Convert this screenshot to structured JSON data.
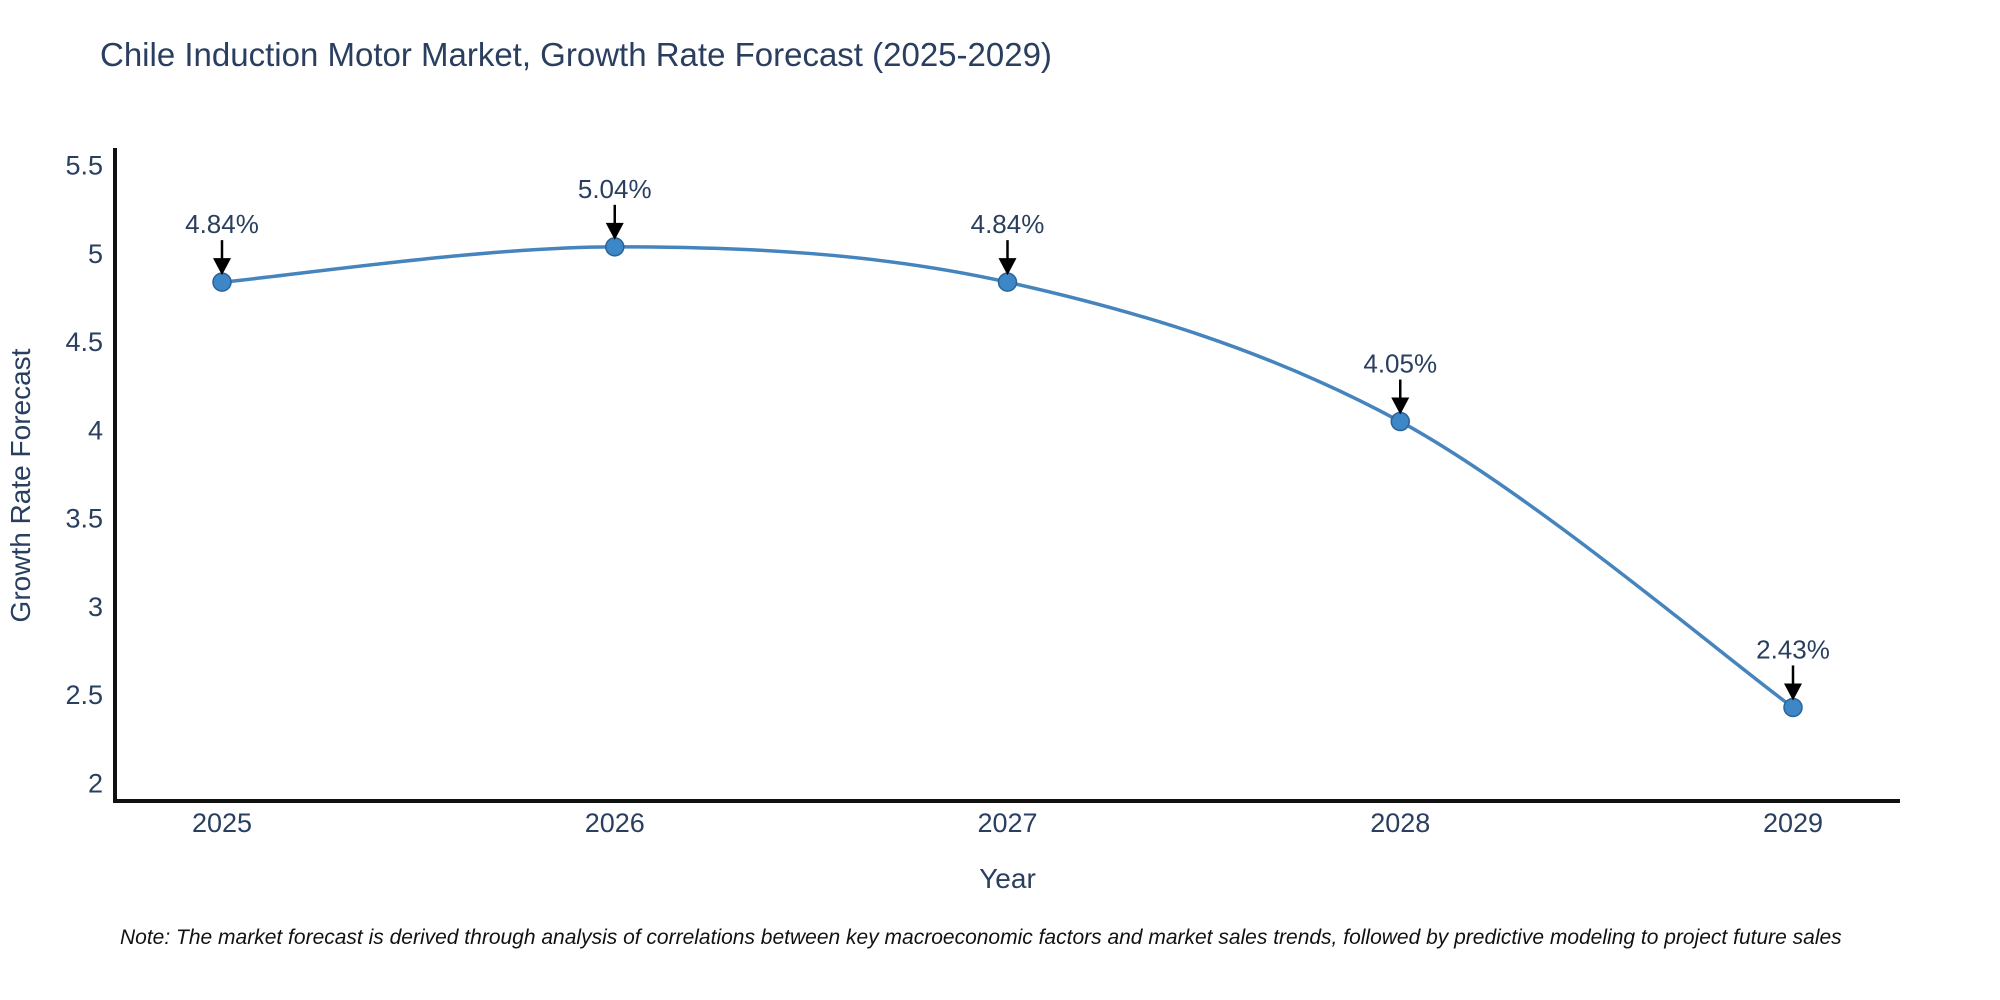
{
  "title": "Chile Induction Motor Market, Growth Rate Forecast (2025-2029)",
  "note": "Note: The market forecast is derived through analysis of correlations between key macroeconomic factors and market sales trends, followed by predictive modeling to project future sales",
  "chart_data": {
    "type": "line",
    "line_shape": "spline",
    "categories": [
      "2025",
      "2026",
      "2027",
      "2028",
      "2029"
    ],
    "series": [
      {
        "name": "Growth Rate Forecast",
        "values": [
          4.84,
          5.04,
          4.84,
          4.05,
          2.43
        ]
      }
    ],
    "point_labels": [
      "4.84%",
      "5.04%",
      "4.84%",
      "4.05%",
      "2.43%"
    ],
    "xlabel": "Year",
    "ylabel": "Growth Rate Forecast",
    "ylim": [
      1.9,
      5.6
    ],
    "yticks": [
      "5.5",
      "5",
      "4.5",
      "4",
      "3.5",
      "3",
      "2.5",
      "2"
    ],
    "ytick_values": [
      5.5,
      5,
      4.5,
      4,
      3.5,
      3,
      2.5,
      2
    ],
    "grid": false,
    "legend": "none",
    "annotations_have_arrows": true,
    "colors": {
      "line": "#4584bd",
      "marker": "#3d87c6",
      "marker_border": "#2b6399",
      "axis": "#111111",
      "text": "#2a3f5f",
      "arrow": "#000000",
      "background": "#ffffff"
    }
  }
}
